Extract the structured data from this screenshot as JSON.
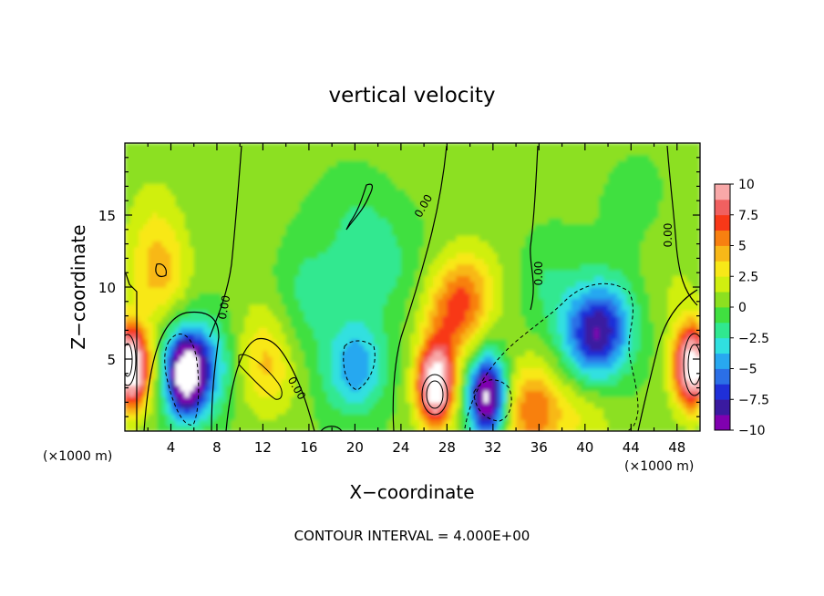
{
  "chart_data": {
    "type": "heatmap",
    "title": "vertical velocity",
    "xlabel": "X−coordinate",
    "ylabel": "Z−coordinate",
    "x_unit_left": "(×1000 m)",
    "x_unit_right": "(×1000 m)",
    "xlim": [
      0,
      50
    ],
    "ylim": [
      0,
      20
    ],
    "x_ticks": [
      4,
      8,
      12,
      16,
      20,
      24,
      28,
      32,
      36,
      40,
      44,
      48
    ],
    "x_tick_labels": [
      "4",
      "8",
      "12",
      "16",
      "20",
      "24",
      "28",
      "32",
      "36",
      "40",
      "44",
      "48"
    ],
    "y_ticks": [
      5,
      10,
      15
    ],
    "y_tick_labels": [
      "5",
      "10",
      "15"
    ],
    "colorbar": {
      "min": -10,
      "max": 10,
      "tick_values": [
        10,
        7.5,
        5,
        2.5,
        0,
        -2.5,
        -5,
        -7.5,
        -10
      ],
      "tick_labels": [
        "10",
        "7.5",
        "5",
        "2.5",
        "0",
        "−2.5",
        "−5",
        "−7.5",
        "−10"
      ],
      "colors": [
        "#8000b0",
        "#3a1aa0",
        "#1f2fd8",
        "#2b6fe6",
        "#28a8f0",
        "#30e0e0",
        "#30e890",
        "#40e040",
        "#8ce020",
        "#d0ef10",
        "#f8e818",
        "#f8b818",
        "#f88010",
        "#f83818",
        "#f06060",
        "#f8a8a8"
      ]
    },
    "contour_labels": [
      "0.00",
      "0.00",
      "0.00",
      "0.00",
      "0.00",
      "0.00"
    ],
    "footer": "CONTOUR INTERVAL =  4.000E+00",
    "features": [
      {
        "x": 0.5,
        "z": 4.5,
        "w": 14
      },
      {
        "x": 5.2,
        "z": 3.8,
        "w": -10
      },
      {
        "x": 6.5,
        "z": 4.5,
        "w": -6
      },
      {
        "x": 12.5,
        "z": 4,
        "w": 3
      },
      {
        "x": 12.2,
        "z": 6.5,
        "w": 1.8
      },
      {
        "x": 14.5,
        "z": 6.5,
        "w": -1
      },
      {
        "x": 16,
        "z": 10,
        "w": -1.3
      },
      {
        "x": 20,
        "z": 4.5,
        "w": -5
      },
      {
        "x": 22,
        "z": 12,
        "w": -1.5
      },
      {
        "x": 20,
        "z": 15,
        "w": -1
      },
      {
        "x": 27,
        "z": 3.2,
        "w": 13
      },
      {
        "x": 28.5,
        "z": 8,
        "w": 5
      },
      {
        "x": 30,
        "z": 10,
        "w": 3
      },
      {
        "x": 31.5,
        "z": 2.5,
        "w": -12
      },
      {
        "x": 35.5,
        "z": 1.5,
        "w": 6
      },
      {
        "x": 40.5,
        "z": 6.5,
        "w": -6
      },
      {
        "x": 42,
        "z": 7.5,
        "w": -4
      },
      {
        "x": 37,
        "z": 10,
        "w": -1.5
      },
      {
        "x": 3,
        "z": 11,
        "w": 4
      },
      {
        "x": 2.5,
        "z": 15,
        "w": 1.5
      },
      {
        "x": 10,
        "z": 14,
        "w": 0.8
      },
      {
        "x": 44,
        "z": 16,
        "w": -0.6
      },
      {
        "x": 49.3,
        "z": 4.5,
        "w": 13
      },
      {
        "x": 48,
        "z": 10,
        "w": 1
      },
      {
        "x": 40,
        "z": 1,
        "w": 2
      }
    ]
  }
}
